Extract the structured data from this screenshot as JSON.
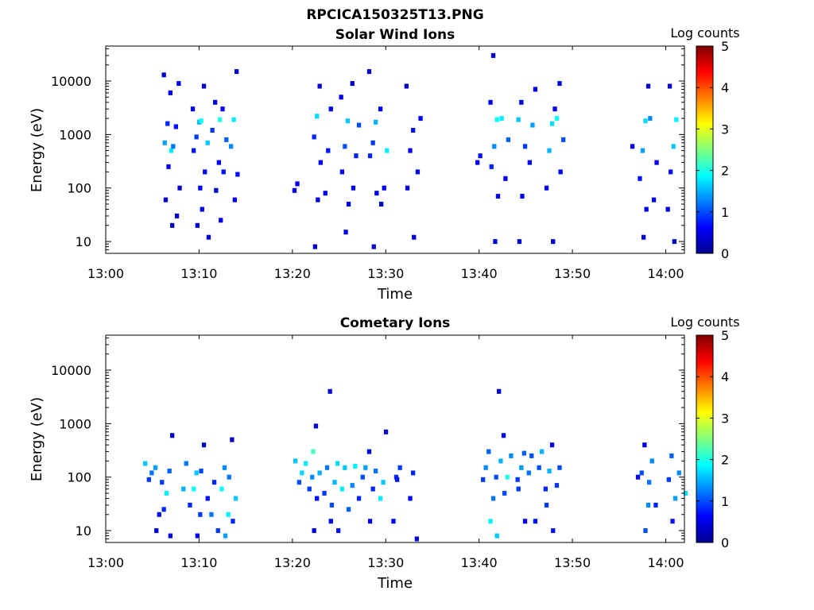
{
  "figure": {
    "title": "RPCICA150325T13.PNG"
  },
  "chart_data": [
    {
      "type": "heatmap",
      "title": "Solar Wind Ions",
      "xlabel": "Time",
      "ylabel": "Energy (eV)",
      "x_ticks": [
        "13:00",
        "13:10",
        "13:20",
        "13:30",
        "13:40",
        "13:50",
        "14:00"
      ],
      "xlim": [
        "13:00",
        "14:02"
      ],
      "y_scale": "log",
      "y_ticks": [
        "10",
        "100",
        "1000",
        "10000"
      ],
      "ylim": [
        6,
        45000
      ],
      "colorbar": {
        "label": "Log counts",
        "ticks": [
          "0",
          "1",
          "2",
          "3",
          "4",
          "5"
        ],
        "range": [
          0,
          5
        ],
        "colormap": "jet"
      },
      "grid": false,
      "cells_time_energy_logcounts": [
        [
          "13:06",
          13000,
          0.4
        ],
        [
          "13:06",
          6000,
          0.5
        ],
        [
          "13:06",
          1600,
          0.8
        ],
        [
          "13:06",
          700,
          1.4
        ],
        [
          "13:06",
          500,
          1.8
        ],
        [
          "13:06",
          250,
          0.6
        ],
        [
          "13:06",
          60,
          0.4
        ],
        [
          "13:06",
          20,
          0.3
        ],
        [
          "13:07",
          9000,
          0.5
        ],
        [
          "13:07",
          1400,
          0.7
        ],
        [
          "13:07",
          600,
          1.2
        ],
        [
          "13:07",
          100,
          0.4
        ],
        [
          "13:07",
          30,
          0.4
        ],
        [
          "13:09",
          3000,
          0.5
        ],
        [
          "13:09",
          1700,
          1.5
        ],
        [
          "13:09",
          900,
          0.9
        ],
        [
          "13:09",
          500,
          0.7
        ],
        [
          "13:09",
          100,
          0.6
        ],
        [
          "13:09",
          20,
          0.5
        ],
        [
          "13:10",
          8000,
          0.4
        ],
        [
          "13:10",
          1800,
          1.9
        ],
        [
          "13:10",
          700,
          1.6
        ],
        [
          "13:10",
          200,
          0.6
        ],
        [
          "13:10",
          40,
          0.5
        ],
        [
          "13:10",
          12,
          0.4
        ],
        [
          "13:11",
          4000,
          0.5
        ],
        [
          "13:11",
          1200,
          0.9
        ],
        [
          "13:11",
          300,
          0.6
        ],
        [
          "13:11",
          90,
          0.5
        ],
        [
          "13:12",
          3000,
          0.6
        ],
        [
          "13:12",
          1900,
          2.0
        ],
        [
          "13:12",
          800,
          1.1
        ],
        [
          "13:12",
          200,
          0.7
        ],
        [
          "13:12",
          25,
          0.5
        ],
        [
          "13:13",
          15000,
          0.4
        ],
        [
          "13:13",
          1900,
          1.8
        ],
        [
          "13:13",
          600,
          1.3
        ],
        [
          "13:13",
          180,
          0.7
        ],
        [
          "13:13",
          60,
          0.5
        ],
        [
          "13:20",
          120,
          0.6
        ],
        [
          "13:20",
          90,
          0.5
        ],
        [
          "13:22",
          8000,
          0.4
        ],
        [
          "13:22",
          2200,
          1.7
        ],
        [
          "13:22",
          900,
          0.8
        ],
        [
          "13:22",
          300,
          0.6
        ],
        [
          "13:22",
          60,
          0.5
        ],
        [
          "13:22",
          8,
          0.4
        ],
        [
          "13:23",
          3000,
          0.6
        ],
        [
          "13:23",
          500,
          0.7
        ],
        [
          "13:23",
          80,
          0.5
        ],
        [
          "13:25",
          5000,
          0.5
        ],
        [
          "13:25",
          1800,
          1.6
        ],
        [
          "13:25",
          600,
          1.0
        ],
        [
          "13:25",
          200,
          0.6
        ],
        [
          "13:25",
          50,
          0.5
        ],
        [
          "13:25",
          15,
          0.5
        ],
        [
          "13:26",
          9000,
          0.4
        ],
        [
          "13:26",
          1500,
          1.0
        ],
        [
          "13:26",
          400,
          0.8
        ],
        [
          "13:26",
          100,
          0.5
        ],
        [
          "13:28",
          15000,
          0.4
        ],
        [
          "13:28",
          1700,
          1.5
        ],
        [
          "13:28",
          700,
          0.9
        ],
        [
          "13:28",
          400,
          0.8
        ],
        [
          "13:28",
          80,
          0.5
        ],
        [
          "13:28",
          8,
          0.4
        ],
        [
          "13:29",
          3000,
          0.6
        ],
        [
          "13:29",
          500,
          1.8
        ],
        [
          "13:29",
          100,
          0.6
        ],
        [
          "13:29",
          50,
          0.4
        ],
        [
          "13:32",
          8000,
          0.4
        ],
        [
          "13:32",
          1200,
          0.7
        ],
        [
          "13:32",
          500,
          0.6
        ],
        [
          "13:32",
          100,
          0.5
        ],
        [
          "13:32",
          12,
          0.4
        ],
        [
          "13:33",
          2000,
          0.6
        ],
        [
          "13:33",
          200,
          0.5
        ],
        [
          "13:39",
          400,
          0.7
        ],
        [
          "13:39",
          300,
          0.6
        ],
        [
          "13:41",
          30000,
          0.4
        ],
        [
          "13:41",
          4000,
          0.5
        ],
        [
          "13:41",
          1900,
          1.9
        ],
        [
          "13:41",
          600,
          1.3
        ],
        [
          "13:41",
          250,
          0.8
        ],
        [
          "13:41",
          70,
          0.5
        ],
        [
          "13:41",
          10,
          0.4
        ],
        [
          "13:42",
          2000,
          1.8
        ],
        [
          "13:42",
          800,
          1.1
        ],
        [
          "13:42",
          150,
          0.6
        ],
        [
          "13:44",
          4000,
          0.5
        ],
        [
          "13:44",
          1900,
          1.6
        ],
        [
          "13:44",
          600,
          0.9
        ],
        [
          "13:44",
          70,
          0.5
        ],
        [
          "13:44",
          10,
          0.4
        ],
        [
          "13:45",
          7000,
          0.5
        ],
        [
          "13:45",
          1500,
          1.4
        ],
        [
          "13:45",
          300,
          0.6
        ],
        [
          "13:47",
          3000,
          0.6
        ],
        [
          "13:47",
          1600,
          1.7
        ],
        [
          "13:47",
          500,
          1.5
        ],
        [
          "13:47",
          100,
          0.5
        ],
        [
          "13:47",
          10,
          0.4
        ],
        [
          "13:48",
          9000,
          0.4
        ],
        [
          "13:48",
          2000,
          1.9
        ],
        [
          "13:48",
          800,
          1.0
        ],
        [
          "13:48",
          200,
          0.6
        ],
        [
          "13:56",
          600,
          0.5
        ],
        [
          "13:57",
          8000,
          0.4
        ],
        [
          "13:57",
          1800,
          1.7
        ],
        [
          "13:57",
          500,
          1.4
        ],
        [
          "13:57",
          150,
          0.7
        ],
        [
          "13:57",
          40,
          0.5
        ],
        [
          "13:57",
          12,
          0.4
        ],
        [
          "13:58",
          2000,
          1.3
        ],
        [
          "13:58",
          300,
          0.6
        ],
        [
          "13:58",
          60,
          0.5
        ],
        [
          "14:00",
          8000,
          0.4
        ],
        [
          "14:00",
          1900,
          1.8
        ],
        [
          "14:00",
          600,
          1.6
        ],
        [
          "14:00",
          200,
          0.7
        ],
        [
          "14:00",
          40,
          0.5
        ],
        [
          "14:00",
          10,
          0.4
        ]
      ]
    },
    {
      "type": "heatmap",
      "title": "Cometary Ions",
      "xlabel": "Time",
      "ylabel": "Energy (eV)",
      "x_ticks": [
        "13:00",
        "13:10",
        "13:20",
        "13:30",
        "13:40",
        "13:50",
        "14:00"
      ],
      "xlim": [
        "13:00",
        "14:02"
      ],
      "y_scale": "log",
      "y_ticks": [
        "10",
        "100",
        "1000",
        "10000"
      ],
      "ylim": [
        6,
        45000
      ],
      "colorbar": {
        "label": "Log counts",
        "ticks": [
          "0",
          "1",
          "2",
          "3",
          "4",
          "5"
        ],
        "range": [
          0,
          5
        ],
        "colormap": "jet"
      },
      "grid": false,
      "cells_time_energy_logcounts": [
        [
          "13:04",
          180,
          1.6
        ],
        [
          "13:04",
          120,
          1.2
        ],
        [
          "13:04",
          90,
          0.9
        ],
        [
          "13:05",
          150,
          1.4
        ],
        [
          "13:05",
          80,
          0.9
        ],
        [
          "13:05",
          20,
          0.7
        ],
        [
          "13:05",
          10,
          0.5
        ],
        [
          "13:06",
          600,
          0.4
        ],
        [
          "13:06",
          130,
          1.1
        ],
        [
          "13:06",
          50,
          1.8
        ],
        [
          "13:06",
          25,
          0.8
        ],
        [
          "13:06",
          8,
          0.5
        ],
        [
          "13:08",
          180,
          1.2
        ],
        [
          "13:08",
          60,
          1.5
        ],
        [
          "13:08",
          30,
          0.8
        ],
        [
          "13:09",
          120,
          1.6
        ],
        [
          "13:09",
          60,
          1.9
        ],
        [
          "13:09",
          20,
          0.9
        ],
        [
          "13:09",
          8,
          0.6
        ],
        [
          "13:10",
          400,
          0.4
        ],
        [
          "13:10",
          130,
          1.0
        ],
        [
          "13:10",
          40,
          0.7
        ],
        [
          "13:11",
          80,
          0.8
        ],
        [
          "13:11",
          20,
          1.2
        ],
        [
          "13:11",
          10,
          0.9
        ],
        [
          "13:12",
          150,
          1.3
        ],
        [
          "13:12",
          60,
          1.9
        ],
        [
          "13:12",
          20,
          1.8
        ],
        [
          "13:12",
          8,
          1.4
        ],
        [
          "13:13",
          500,
          0.4
        ],
        [
          "13:13",
          100,
          1.2
        ],
        [
          "13:13",
          40,
          1.6
        ],
        [
          "13:13",
          15,
          0.8
        ],
        [
          "13:20",
          200,
          1.6
        ],
        [
          "13:20",
          120,
          1.7
        ],
        [
          "13:20",
          80,
          1.0
        ],
        [
          "13:21",
          180,
          1.8
        ],
        [
          "13:21",
          100,
          1.3
        ],
        [
          "13:21",
          60,
          0.9
        ],
        [
          "13:22",
          900,
          0.4
        ],
        [
          "13:22",
          300,
          2.2
        ],
        [
          "13:22",
          120,
          1.5
        ],
        [
          "13:22",
          40,
          0.7
        ],
        [
          "13:22",
          10,
          0.5
        ],
        [
          "13:23",
          4000,
          0.4
        ],
        [
          "13:23",
          150,
          1.2
        ],
        [
          "13:23",
          50,
          0.9
        ],
        [
          "13:23",
          15,
          0.6
        ],
        [
          "13:24",
          180,
          1.7
        ],
        [
          "13:24",
          80,
          1.5
        ],
        [
          "13:24",
          30,
          1.0
        ],
        [
          "13:24",
          10,
          0.7
        ],
        [
          "13:25",
          150,
          1.6
        ],
        [
          "13:25",
          60,
          1.8
        ],
        [
          "13:25",
          25,
          1.1
        ],
        [
          "13:26",
          160,
          1.8
        ],
        [
          "13:26",
          70,
          1.3
        ],
        [
          "13:26",
          40,
          0.8
        ],
        [
          "13:27",
          150,
          1.4
        ],
        [
          "13:27",
          100,
          1.0
        ],
        [
          "13:28",
          300,
          0.5
        ],
        [
          "13:28",
          130,
          1.2
        ],
        [
          "13:28",
          60,
          0.8
        ],
        [
          "13:28",
          15,
          0.6
        ],
        [
          "13:29",
          700,
          0.4
        ],
        [
          "13:29",
          80,
          1.6
        ],
        [
          "13:29",
          40,
          1.8
        ],
        [
          "13:30",
          100,
          0.8
        ],
        [
          "13:30",
          15,
          0.6
        ],
        [
          "13:31",
          150,
          0.9
        ],
        [
          "13:31",
          90,
          0.7
        ],
        [
          "13:32",
          120,
          0.8
        ],
        [
          "13:32",
          40,
          0.6
        ],
        [
          "13:33",
          7,
          0.5
        ],
        [
          "13:40",
          300,
          1.1
        ],
        [
          "13:40",
          150,
          1.3
        ],
        [
          "13:40",
          90,
          0.9
        ],
        [
          "13:41",
          4000,
          0.4
        ],
        [
          "13:41",
          100,
          1.0
        ],
        [
          "13:41",
          40,
          1.2
        ],
        [
          "13:41",
          15,
          1.8
        ],
        [
          "13:41",
          8,
          1.6
        ],
        [
          "13:42",
          600,
          0.5
        ],
        [
          "13:42",
          200,
          1.5
        ],
        [
          "13:42",
          100,
          2.0
        ],
        [
          "13:42",
          50,
          1.0
        ],
        [
          "13:43",
          250,
          1.3
        ],
        [
          "13:43",
          90,
          0.9
        ],
        [
          "13:44",
          280,
          1.1
        ],
        [
          "13:44",
          150,
          1.4
        ],
        [
          "13:44",
          60,
          0.9
        ],
        [
          "13:44",
          15,
          0.6
        ],
        [
          "13:45",
          250,
          1.0
        ],
        [
          "13:45",
          120,
          1.2
        ],
        [
          "13:45",
          15,
          0.7
        ],
        [
          "13:46",
          300,
          1.5
        ],
        [
          "13:46",
          150,
          1.0
        ],
        [
          "13:46",
          60,
          0.8
        ],
        [
          "13:47",
          400,
          0.6
        ],
        [
          "13:47",
          130,
          1.5
        ],
        [
          "13:47",
          30,
          0.9
        ],
        [
          "13:47",
          10,
          0.7
        ],
        [
          "13:48",
          150,
          1.0
        ],
        [
          "13:48",
          70,
          0.9
        ],
        [
          "13:56",
          100,
          0.5
        ],
        [
          "13:57",
          400,
          0.5
        ],
        [
          "13:57",
          120,
          1.0
        ],
        [
          "13:57",
          30,
          1.3
        ],
        [
          "13:57",
          10,
          1.0
        ],
        [
          "13:58",
          200,
          1.3
        ],
        [
          "13:58",
          80,
          1.2
        ],
        [
          "13:58",
          30,
          0.8
        ],
        [
          "14:00",
          250,
          1.1
        ],
        [
          "14:00",
          90,
          0.9
        ],
        [
          "14:00",
          40,
          1.4
        ],
        [
          "14:00",
          15,
          0.7
        ],
        [
          "14:01",
          120,
          1.3
        ],
        [
          "14:01",
          50,
          1.7
        ]
      ]
    }
  ]
}
